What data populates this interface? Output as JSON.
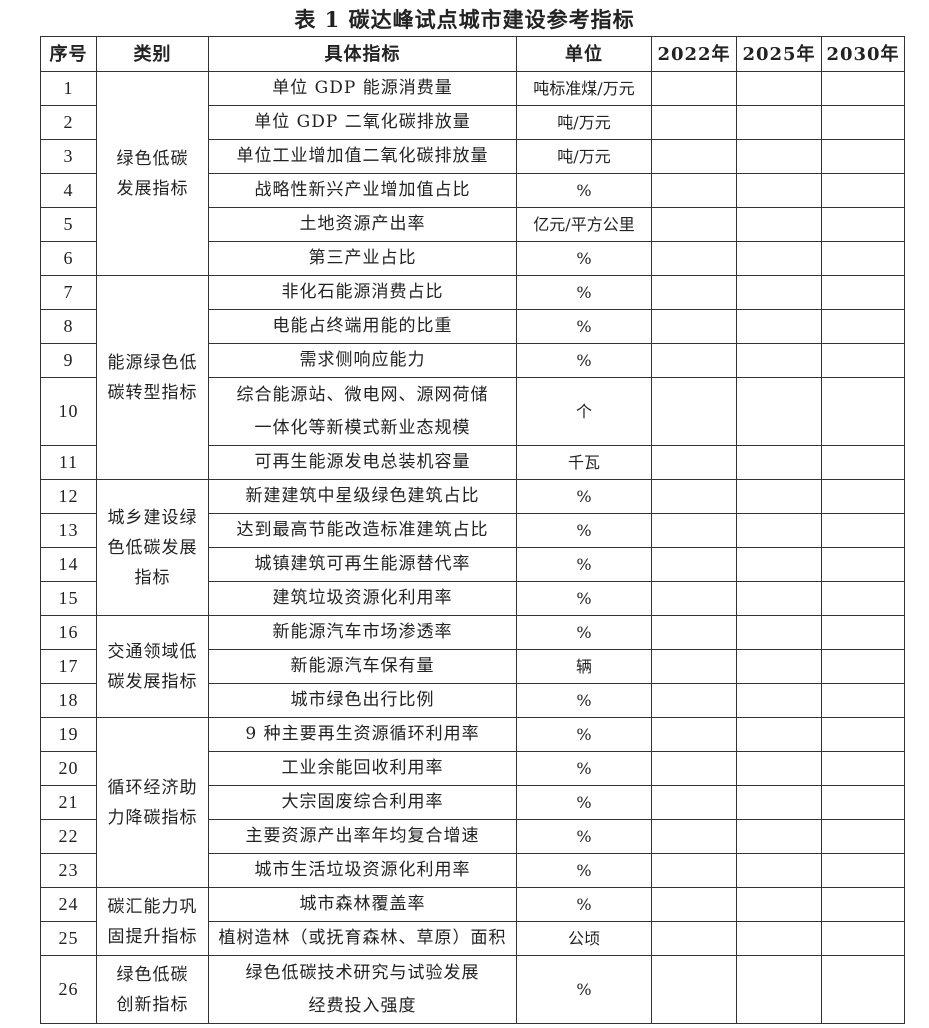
{
  "title": "表 1  碳达峰试点城市建设参考指标",
  "headers": [
    "序号",
    "类别",
    "具体指标",
    "单位",
    "2022年",
    "2025年",
    "2030年"
  ],
  "groups": [
    {
      "category_lines": [
        "绿色低碳",
        "发展指标"
      ],
      "rows": [
        {
          "no": "1",
          "indicator": [
            "单位 GDP 能源消费量"
          ],
          "unit": "吨标准煤/万元"
        },
        {
          "no": "2",
          "indicator": [
            "单位 GDP 二氧化碳排放量"
          ],
          "unit": "吨/万元"
        },
        {
          "no": "3",
          "indicator": [
            "单位工业增加值二氧化碳排放量"
          ],
          "unit": "吨/万元"
        },
        {
          "no": "4",
          "indicator": [
            "战略性新兴产业增加值占比"
          ],
          "unit": "%"
        },
        {
          "no": "5",
          "indicator": [
            "土地资源产出率"
          ],
          "unit": "亿元/平方公里"
        },
        {
          "no": "6",
          "indicator": [
            "第三产业占比"
          ],
          "unit": "%"
        }
      ]
    },
    {
      "category_lines": [
        "能源绿色低",
        "碳转型指标"
      ],
      "rows": [
        {
          "no": "7",
          "indicator": [
            "非化石能源消费占比"
          ],
          "unit": "%"
        },
        {
          "no": "8",
          "indicator": [
            "电能占终端用能的比重"
          ],
          "unit": "%"
        },
        {
          "no": "9",
          "indicator": [
            "需求侧响应能力"
          ],
          "unit": "%"
        },
        {
          "no": "10",
          "indicator": [
            "综合能源站、微电网、源网荷储",
            "一体化等新模式新业态规模"
          ],
          "unit": "个"
        },
        {
          "no": "11",
          "indicator": [
            "可再生能源发电总装机容量"
          ],
          "unit": "千瓦"
        }
      ]
    },
    {
      "category_lines": [
        "城乡建设绿",
        "色低碳发展",
        "指标"
      ],
      "rows": [
        {
          "no": "12",
          "indicator": [
            "新建建筑中星级绿色建筑占比"
          ],
          "unit": "%"
        },
        {
          "no": "13",
          "indicator": [
            "达到最高节能改造标准建筑占比"
          ],
          "unit": "%"
        },
        {
          "no": "14",
          "indicator": [
            "城镇建筑可再生能源替代率"
          ],
          "unit": "%"
        },
        {
          "no": "15",
          "indicator": [
            "建筑垃圾资源化利用率"
          ],
          "unit": "%"
        }
      ]
    },
    {
      "category_lines": [
        "交通领域低",
        "碳发展指标"
      ],
      "rows": [
        {
          "no": "16",
          "indicator": [
            "新能源汽车市场渗透率"
          ],
          "unit": "%"
        },
        {
          "no": "17",
          "indicator": [
            "新能源汽车保有量"
          ],
          "unit": "辆"
        },
        {
          "no": "18",
          "indicator": [
            "城市绿色出行比例"
          ],
          "unit": "%"
        }
      ]
    },
    {
      "category_lines": [
        "循环经济助",
        "力降碳指标"
      ],
      "rows": [
        {
          "no": "19",
          "indicator": [
            "9 种主要再生资源循环利用率"
          ],
          "unit": "%"
        },
        {
          "no": "20",
          "indicator": [
            "工业余能回收利用率"
          ],
          "unit": "%"
        },
        {
          "no": "21",
          "indicator": [
            "大宗固废综合利用率"
          ],
          "unit": "%"
        },
        {
          "no": "22",
          "indicator": [
            "主要资源产出率年均复合增速"
          ],
          "unit": "%"
        },
        {
          "no": "23",
          "indicator": [
            "城市生活垃圾资源化利用率"
          ],
          "unit": "%"
        }
      ]
    },
    {
      "category_lines": [
        "碳汇能力巩",
        "固提升指标"
      ],
      "rows": [
        {
          "no": "24",
          "indicator": [
            "城市森林覆盖率"
          ],
          "unit": "%"
        },
        {
          "no": "25",
          "indicator": [
            "植树造林（或抚育森林、草原）面积"
          ],
          "unit": "公顷"
        }
      ]
    },
    {
      "category_lines": [
        "绿色低碳",
        "创新指标"
      ],
      "rows": [
        {
          "no": "26",
          "indicator": [
            "绿色低碳技术研究与试验发展",
            "经费投入强度"
          ],
          "unit": "%"
        }
      ]
    }
  ]
}
